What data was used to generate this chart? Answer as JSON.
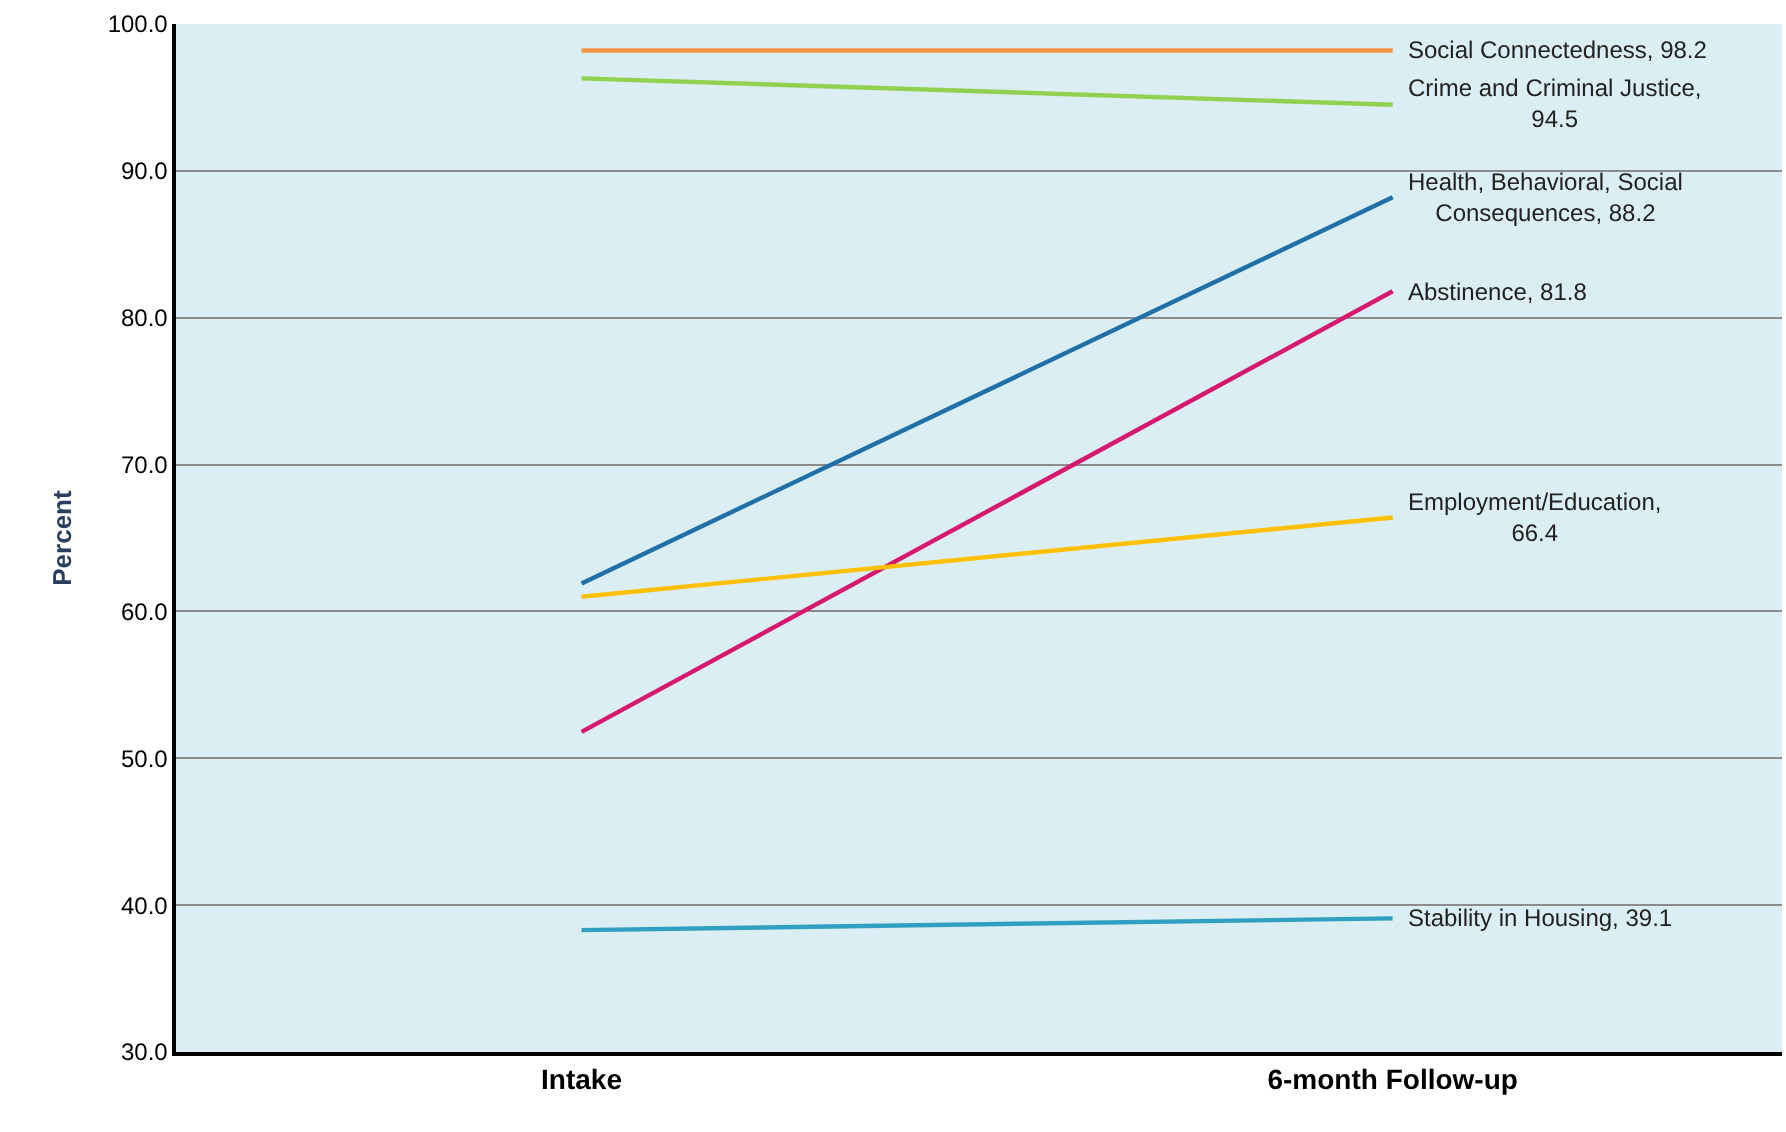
{
  "chart_data": {
    "type": "line",
    "ylabel": "Percent",
    "categories": [
      "Intake",
      "6-month Follow-up"
    ],
    "series": [
      {
        "color": "#f79646",
        "values": [
          98.2,
          98.2
        ]
      },
      {
        "color": "#92d050",
        "values": [
          96.3,
          94.5
        ]
      },
      {
        "color": "#1f6fa8",
        "values": [
          61.9,
          88.2
        ]
      },
      {
        "color": "#d6186f",
        "values": [
          51.8,
          81.8
        ]
      },
      {
        "color": "#ffc000",
        "values": [
          61.0,
          66.4
        ]
      },
      {
        "color": "#31a0c0",
        "values": [
          38.3,
          39.1
        ]
      }
    ],
    "annotations": [
      {
        "text": "Social Connectedness, 98.2",
        "x": "6-month Follow-up",
        "y": 98.2
      },
      {
        "text": "Crime and Criminal Justice,\n94.5",
        "x": "6-month Follow-up",
        "y": 94.5
      },
      {
        "text": "Health, Behavioral, Social\nConsequences, 88.2",
        "x": "6-month Follow-up",
        "y": 88.2
      },
      {
        "text": "Abstinence, 81.8",
        "x": "6-month Follow-up",
        "y": 81.8
      },
      {
        "text": "Employment/Education,\n66.4",
        "x": "6-month Follow-up",
        "y": 66.4
      },
      {
        "text": "Stability in Housing, 39.1",
        "x": "6-month Follow-up",
        "y": 39.1
      }
    ],
    "ylim": [
      30,
      100
    ],
    "yticks": [
      {
        "value": 30,
        "label": "30.0"
      },
      {
        "value": 40,
        "label": "40.0"
      },
      {
        "value": 50,
        "label": "50.0"
      },
      {
        "value": 60,
        "label": "60.0"
      },
      {
        "value": 70,
        "label": "70.0"
      },
      {
        "value": 80,
        "label": "80.0"
      },
      {
        "value": 90,
        "label": "90.0"
      },
      {
        "value": 100,
        "label": "100.0"
      }
    ],
    "grid": "y",
    "marker": "none",
    "line_style": "solid"
  }
}
